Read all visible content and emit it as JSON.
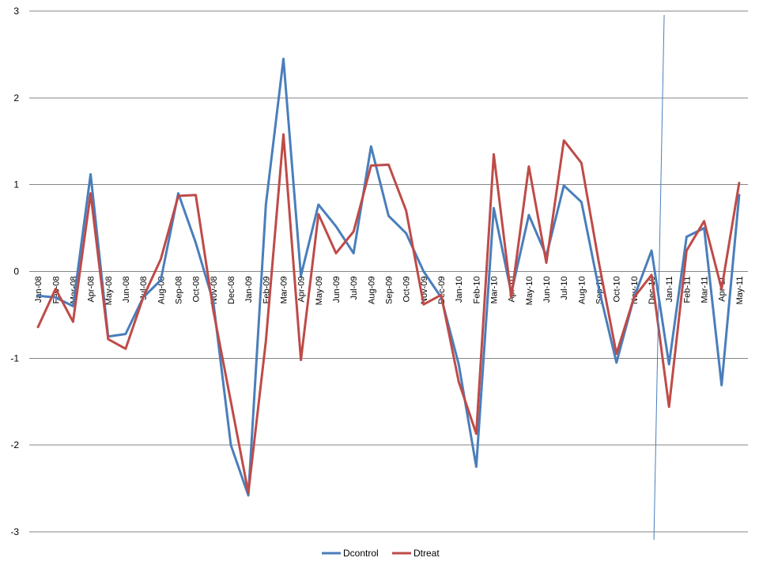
{
  "chart_data": {
    "type": "line",
    "categories": [
      "Jan-08",
      "Feb-08",
      "Mar-08",
      "Apr-08",
      "May-08",
      "Jun-08",
      "Jul-08",
      "Aug-08",
      "Sep-08",
      "Oct-08",
      "Nov-08",
      "Dec-08",
      "Jan-09",
      "Feb-09",
      "Mar-09",
      "Apr-09",
      "May-09",
      "Jun-09",
      "Jul-09",
      "Aug-09",
      "Sep-09",
      "Oct-09",
      "Nov-09",
      "Dec-09",
      "Jan-10",
      "Feb-10",
      "Mar-10",
      "Apr-10",
      "May-10",
      "Jun-10",
      "Jul-10",
      "Aug-10",
      "Sep-10",
      "Oct-10",
      "Nov-10",
      "Dec-10",
      "Jan-11",
      "Feb-11",
      "Mar-11",
      "Apr-11",
      "May-11"
    ],
    "series": [
      {
        "name": "Dcontrol",
        "color": "#4a7ebb",
        "values": [
          -0.28,
          -0.3,
          -0.4,
          1.12,
          -0.75,
          -0.72,
          -0.3,
          -0.1,
          0.9,
          0.33,
          -0.35,
          -2.0,
          -2.58,
          0.77,
          2.45,
          -0.05,
          0.77,
          0.52,
          0.21,
          1.44,
          0.64,
          0.44,
          0.0,
          -0.3,
          -1.07,
          -2.25,
          0.73,
          -0.25,
          0.65,
          0.18,
          0.99,
          0.8,
          -0.2,
          -1.05,
          -0.3,
          0.24,
          -1.07,
          0.4,
          0.5,
          -1.31,
          0.88
        ]
      },
      {
        "name": "Dtreat",
        "color": "#be4b48",
        "values": [
          -0.64,
          -0.2,
          -0.58,
          0.9,
          -0.78,
          -0.89,
          -0.3,
          0.14,
          0.87,
          0.88,
          -0.45,
          -1.5,
          -2.55,
          -0.8,
          1.58,
          -1.02,
          0.66,
          0.21,
          0.46,
          1.22,
          1.23,
          0.7,
          -0.38,
          -0.27,
          -1.27,
          -1.87,
          1.35,
          -0.3,
          1.21,
          0.1,
          1.51,
          1.25,
          0.1,
          -0.95,
          -0.3,
          -0.04,
          -1.56,
          0.24,
          0.58,
          -0.2,
          1.02
        ]
      }
    ],
    "yticks": [
      "3",
      "2",
      "1",
      "0",
      "-1",
      "-2",
      "-3"
    ],
    "ylim": [
      -3,
      3
    ],
    "grid": true,
    "legend_position": "bottom",
    "gridline_color": "#868686",
    "annotation_line": {
      "type": "near-vertical line",
      "color": "#4a7ebb",
      "x_category": "Dec-10"
    }
  }
}
